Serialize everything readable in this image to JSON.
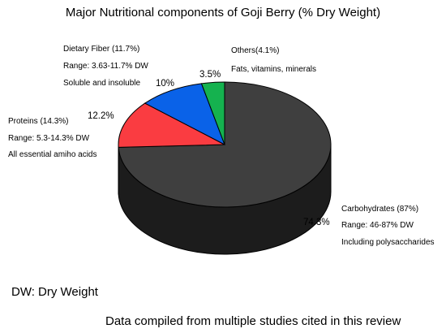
{
  "chart_data": {
    "type": "pie",
    "style": "3d",
    "title": "Major Nutritional components of Goji Berry (% Dry Weight)",
    "categories": [
      "Carbohydrates",
      "Proteins",
      "Dietary Fiber",
      "Others"
    ],
    "values": [
      74.3,
      12.2,
      10,
      3.5
    ],
    "value_labels": [
      "74.3%",
      "12.2%",
      "10%",
      "3.5%"
    ],
    "colors": [
      "#3f3f3f",
      "#fa3c41",
      "#0a62e8",
      "#15b24f"
    ],
    "annotations": [
      {
        "slice": "Carbohydrates",
        "lines": [
          "Carbohydrates (87%)",
          "Range: 46-87% DW",
          "Including polysaccharides"
        ]
      },
      {
        "slice": "Proteins",
        "lines": [
          "Proteins (14.3%)",
          "Range: 5.3-14.3% DW",
          "All essential amiho acids"
        ]
      },
      {
        "slice": "Dietary Fiber",
        "lines": [
          "Dietary Fiber (11.7%)",
          "Range: 3.63-11.7% DW",
          "Soluble and insoluble"
        ]
      },
      {
        "slice": "Others",
        "lines": [
          "Others(4.1%)",
          "Fats, vitamins, minerals"
        ]
      }
    ],
    "legend": "none"
  },
  "footnotes": {
    "abbreviation": "DW: Dry Weight",
    "source": "Data compiled from multiple studies cited in this review"
  }
}
